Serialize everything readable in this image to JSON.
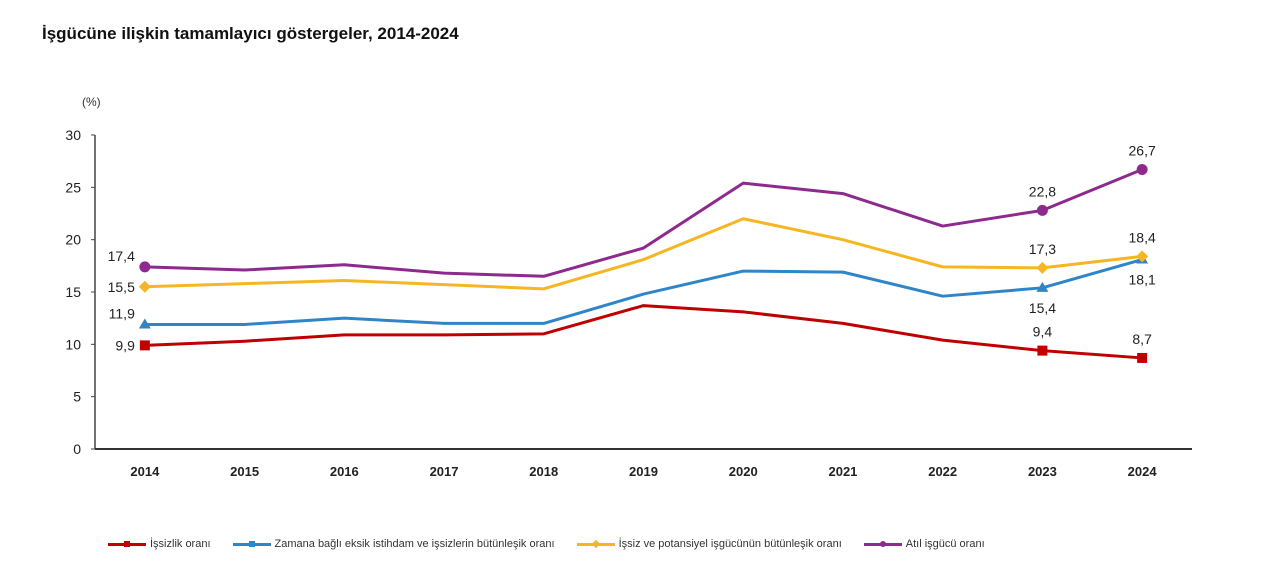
{
  "chart_data": {
    "type": "line",
    "title": "İşgücüne ilişkin tamamlayıcı göstergeler, 2014-2024",
    "ylabel": "(%)",
    "xlabel": "",
    "ylim": [
      0,
      30
    ],
    "yticks": [
      "0",
      "5",
      "10",
      "15",
      "20",
      "25",
      "30"
    ],
    "ytick_values": [
      0,
      5,
      10,
      15,
      20,
      25,
      30
    ],
    "categories": [
      "2014",
      "2015",
      "2016",
      "2017",
      "2018",
      "2019",
      "2020",
      "2021",
      "2022",
      "2023",
      "2024"
    ],
    "grid": false,
    "legend_position": "bottom",
    "series": [
      {
        "name": "İşsizlik oranı",
        "color": "#c00000",
        "marker": "square",
        "values": [
          9.9,
          10.3,
          10.9,
          10.9,
          11.0,
          13.7,
          13.1,
          12.0,
          10.4,
          9.4,
          8.7
        ],
        "labels": [
          {
            "index": 0,
            "text": "9,9",
            "pos": "left"
          },
          {
            "index": 9,
            "text": "9,4",
            "pos": "above"
          },
          {
            "index": 10,
            "text": "8,7",
            "pos": "above"
          }
        ]
      },
      {
        "name": "Zamana bağlı eksik istihdam ve işsizlerin bütünleşik oranı",
        "color": "#2e86c8",
        "marker": "triangle",
        "values": [
          11.9,
          11.9,
          12.5,
          12.0,
          12.0,
          14.8,
          17.0,
          16.9,
          14.6,
          15.4,
          18.1
        ],
        "labels": [
          {
            "index": 0,
            "text": "11,9",
            "pos": "upper-left"
          },
          {
            "index": 9,
            "text": "15,4",
            "pos": "below"
          },
          {
            "index": 10,
            "text": "18,1",
            "pos": "below"
          }
        ]
      },
      {
        "name": "İşsiz ve potansiyel işgücünün bütünleşik oranı",
        "color": "#f5b622",
        "marker": "diamond",
        "values": [
          15.5,
          15.8,
          16.1,
          15.7,
          15.3,
          18.1,
          22.0,
          20.0,
          17.4,
          17.3,
          18.4
        ],
        "labels": [
          {
            "index": 0,
            "text": "15,5",
            "pos": "left"
          },
          {
            "index": 9,
            "text": "17,3",
            "pos": "above"
          },
          {
            "index": 10,
            "text": "18,4",
            "pos": "above"
          }
        ]
      },
      {
        "name": "Atıl işgücü oranı",
        "color": "#8e2a8e",
        "marker": "circle",
        "values": [
          17.4,
          17.1,
          17.6,
          16.8,
          16.5,
          19.2,
          25.4,
          24.4,
          21.3,
          22.8,
          26.7
        ],
        "labels": [
          {
            "index": 0,
            "text": "17,4",
            "pos": "upper-left"
          },
          {
            "index": 9,
            "text": "22,8",
            "pos": "above"
          },
          {
            "index": 10,
            "text": "26,7",
            "pos": "above"
          }
        ]
      }
    ]
  }
}
